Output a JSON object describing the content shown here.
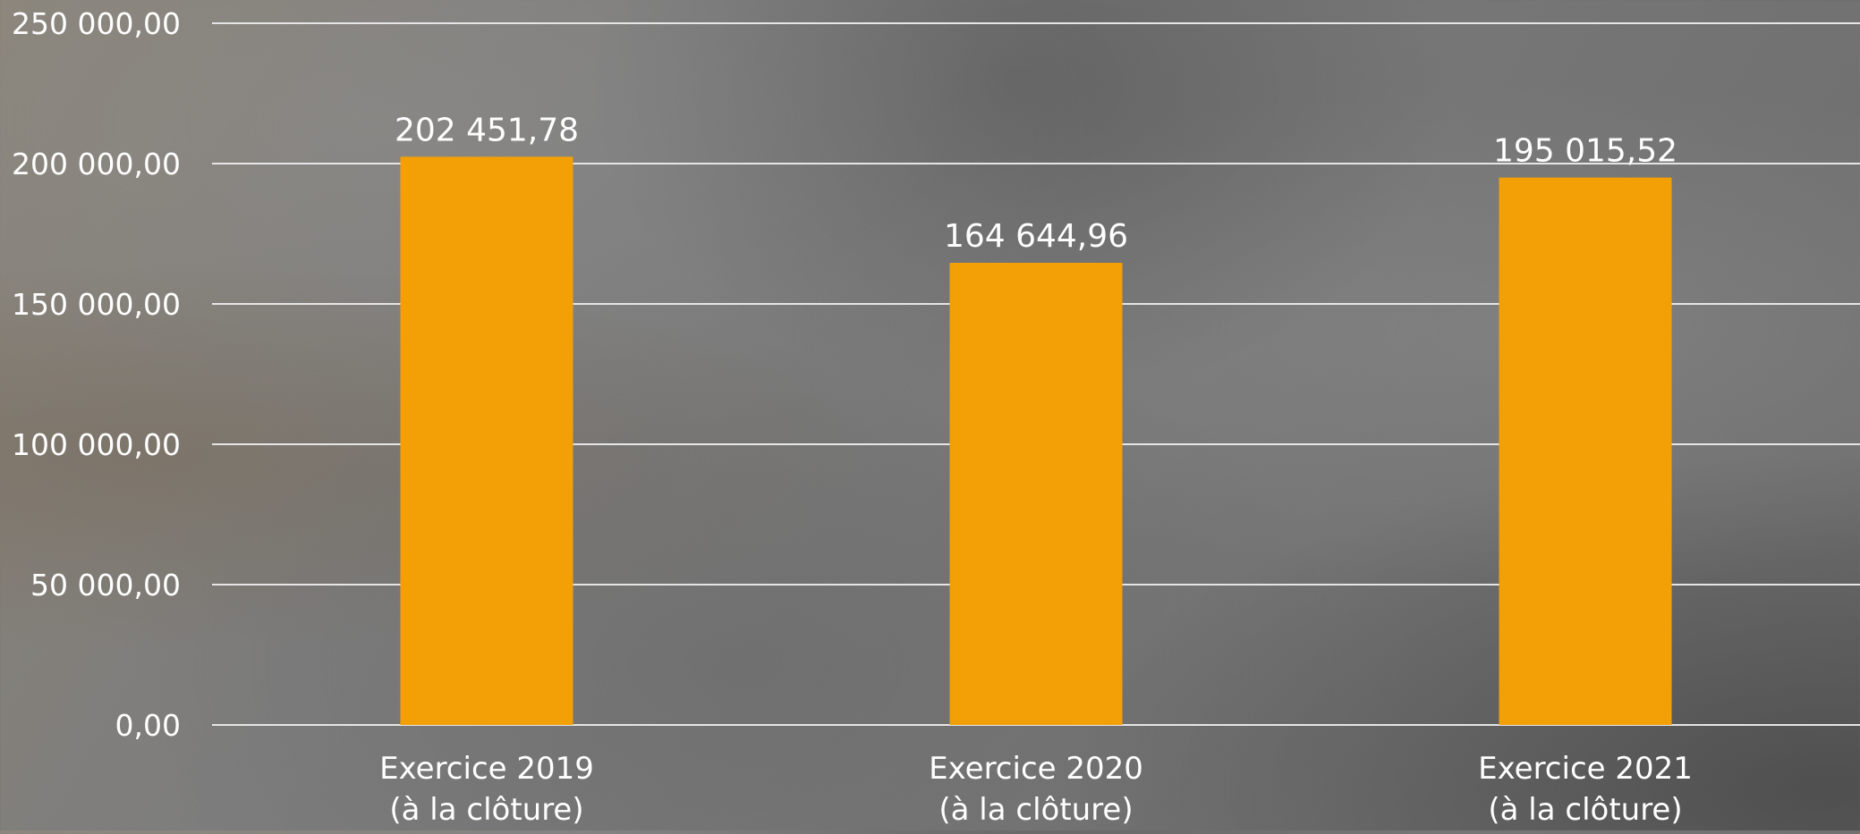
{
  "chart_data": {
    "type": "bar",
    "categories": [
      [
        "Exercice 2019",
        "(à la clôture)"
      ],
      [
        "Exercice 2020",
        "(à la clôture)"
      ],
      [
        "Exercice 2021",
        "(à la clôture)"
      ]
    ],
    "values": [
      202451.78,
      164644.96,
      195015.52
    ],
    "data_labels": [
      "202 451,78",
      "164 644,96",
      "195 015,52"
    ],
    "y_ticks": [
      0,
      50000,
      100000,
      150000,
      200000,
      250000
    ],
    "y_tick_labels": [
      "0,00",
      "50 000,00",
      "100 000,00",
      "150 000,00",
      "200 000,00",
      "250 000,00"
    ],
    "ylim": [
      0,
      250000
    ],
    "grid": true,
    "legend": "none",
    "bar_color": "#f3a007",
    "gridline_color": "#e6e6e6",
    "text_color": "#ffffff"
  }
}
